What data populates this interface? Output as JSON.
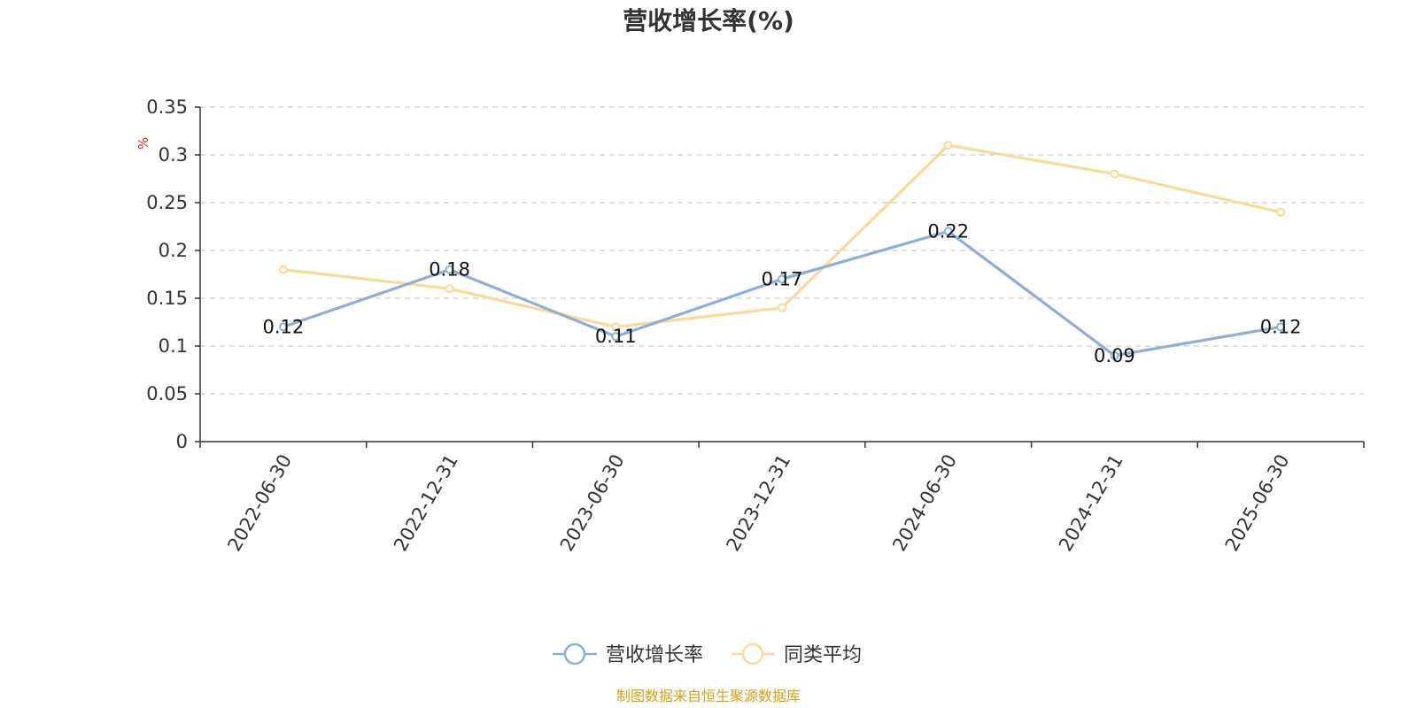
{
  "chart_data": {
    "type": "line",
    "title": "营收增长率(%)",
    "ylabel": "%",
    "categories": [
      "2022-06-30",
      "2022-12-31",
      "2023-06-30",
      "2023-12-31",
      "2024-06-30",
      "2024-12-31",
      "2025-06-30"
    ],
    "yticks": [
      "0",
      "0.05",
      "0.1",
      "0.15",
      "0.2",
      "0.25",
      "0.3",
      "0.35"
    ],
    "ylim": [
      0,
      0.35
    ],
    "grid": true,
    "legend_position": "bottom-center",
    "series": [
      {
        "name": "营收增长率",
        "values": [
          0.12,
          0.18,
          0.11,
          0.17,
          0.22,
          0.09,
          0.12
        ],
        "labels": [
          "0.12",
          "0.18",
          "0.11",
          "0.17",
          "0.22",
          "0.09",
          "0.12"
        ],
        "color": "#8eaed8",
        "show_labels": true
      },
      {
        "name": "同类平均",
        "values": [
          0.18,
          0.16,
          0.12,
          0.14,
          0.31,
          0.28,
          0.24
        ],
        "color": "#fbd997",
        "show_labels": false
      }
    ],
    "source": "制图数据来自恒生聚源数据库",
    "source_color": "#d4a017",
    "unit_color": "#e02020"
  }
}
